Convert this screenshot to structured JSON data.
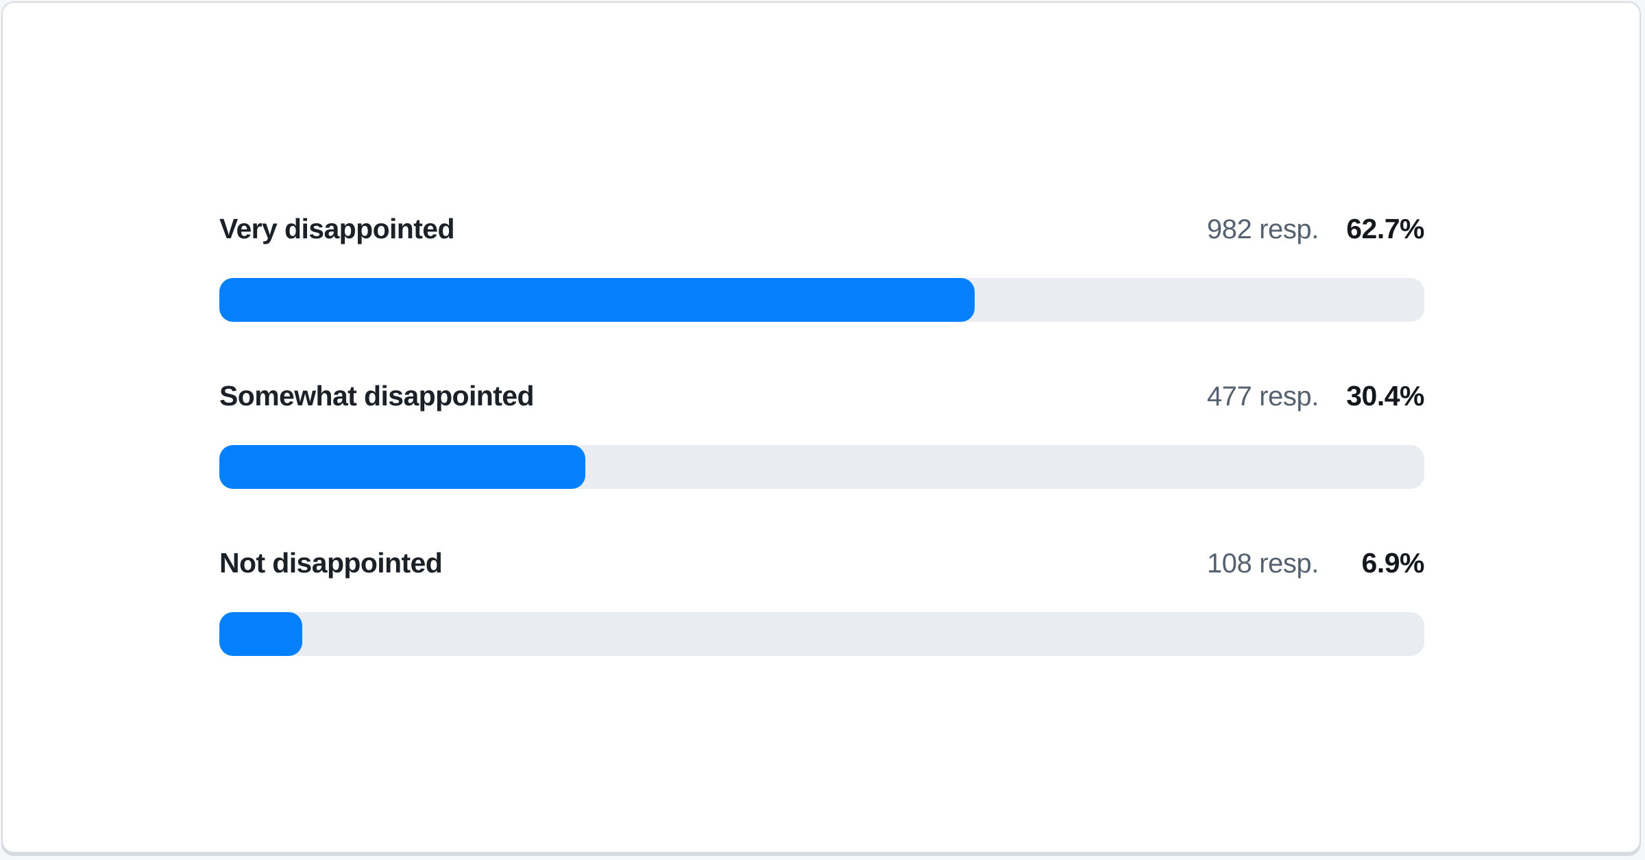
{
  "colors": {
    "bar_fill": "#0580FC",
    "bar_track": "#E9ECF0",
    "label_text": "#1C2127",
    "responses_text": "#55616E",
    "percent_text": "#14181D",
    "card_border": "#D8DBDF",
    "card_background": "#FFFFFF"
  },
  "rows": [
    {
      "label": "Very disappointed",
      "responses_label": "982 resp.",
      "percent_label": "62.7%",
      "percent": 62.7
    },
    {
      "label": "Somewhat disappointed",
      "responses_label": "477 resp.",
      "percent_label": "30.4%",
      "percent": 30.4
    },
    {
      "label": "Not disappointed",
      "responses_label": "108 resp.",
      "percent_label": "6.9%",
      "percent": 6.9
    }
  ],
  "chart_data": {
    "type": "bar",
    "orientation": "horizontal",
    "categories": [
      "Very disappointed",
      "Somewhat disappointed",
      "Not disappointed"
    ],
    "values": [
      62.7,
      30.4,
      6.9
    ],
    "value_unit": "%",
    "response_counts": [
      982,
      477,
      108
    ],
    "title": "",
    "xlabel": "",
    "ylabel": "",
    "xlim": [
      0,
      100
    ],
    "grid": false,
    "legend": false,
    "bar_color": "#0580FC",
    "track_color": "#E9ECF0"
  }
}
